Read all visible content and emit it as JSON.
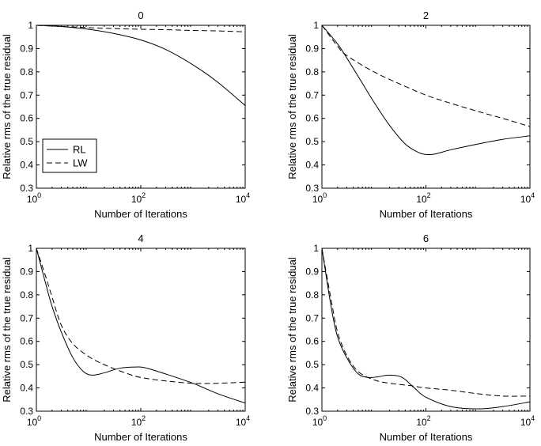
{
  "chart_data": [
    {
      "type": "line",
      "title": "0",
      "xlabel": "Number of Iterations",
      "ylabel": "Relative rms of the true residual",
      "xscale": "log",
      "xlim": [
        1,
        10000
      ],
      "ylim": [
        0.3,
        1
      ],
      "grid": false,
      "xticks": [
        {
          "value": 1,
          "base": "10",
          "exp": "0"
        },
        {
          "value": 100,
          "base": "10",
          "exp": "2"
        },
        {
          "value": 10000,
          "base": "10",
          "exp": "4"
        }
      ],
      "yticks": [
        "0.3",
        "0.4",
        "0.5",
        "0.6",
        "0.7",
        "0.8",
        "0.9",
        "1"
      ],
      "legend": {
        "position": "bottom-left",
        "entries": [
          "RL",
          "LW"
        ]
      },
      "series": [
        {
          "name": "RL",
          "style": "solid",
          "x": [
            1,
            3,
            10,
            30,
            100,
            300,
            1000,
            3000,
            10000
          ],
          "y": [
            1.0,
            0.995,
            0.983,
            0.965,
            0.937,
            0.896,
            0.83,
            0.755,
            0.655
          ]
        },
        {
          "name": "LW",
          "style": "dashed",
          "x": [
            1,
            3,
            10,
            30,
            100,
            300,
            1000,
            3000,
            10000
          ],
          "y": [
            1.0,
            0.995,
            0.99,
            0.986,
            0.983,
            0.981,
            0.978,
            0.976,
            0.972
          ]
        }
      ]
    },
    {
      "type": "line",
      "title": "2",
      "xlabel": "Number of Iterations",
      "ylabel": "Relative rms of the true residual",
      "xscale": "log",
      "xlim": [
        1,
        10000
      ],
      "ylim": [
        0.3,
        1
      ],
      "grid": false,
      "xticks": [
        {
          "value": 1,
          "base": "10",
          "exp": "0"
        },
        {
          "value": 100,
          "base": "10",
          "exp": "2"
        },
        {
          "value": 10000,
          "base": "10",
          "exp": "4"
        }
      ],
      "yticks": [
        "0.3",
        "0.4",
        "0.5",
        "0.6",
        "0.7",
        "0.8",
        "0.9",
        "1"
      ],
      "series": [
        {
          "name": "RL",
          "style": "solid",
          "x": [
            1,
            2,
            3,
            5,
            10,
            20,
            40,
            70,
            100,
            150,
            300,
            1000,
            3000,
            10000
          ],
          "y": [
            1.0,
            0.92,
            0.86,
            0.78,
            0.67,
            0.57,
            0.49,
            0.455,
            0.445,
            0.447,
            0.465,
            0.49,
            0.51,
            0.525
          ]
        },
        {
          "name": "LW",
          "style": "dashed",
          "x": [
            1,
            2,
            3,
            10,
            30,
            100,
            300,
            1000,
            3000,
            10000
          ],
          "y": [
            1.0,
            0.91,
            0.87,
            0.8,
            0.75,
            0.7,
            0.665,
            0.63,
            0.6,
            0.565
          ]
        }
      ]
    },
    {
      "type": "line",
      "title": "4",
      "xlabel": "Number of Iterations",
      "ylabel": "Relative rms of the true residual",
      "xscale": "log",
      "xlim": [
        1,
        10000
      ],
      "ylim": [
        0.3,
        1
      ],
      "grid": false,
      "xticks": [
        {
          "value": 1,
          "base": "10",
          "exp": "0"
        },
        {
          "value": 100,
          "base": "10",
          "exp": "2"
        },
        {
          "value": 10000,
          "base": "10",
          "exp": "4"
        }
      ],
      "yticks": [
        "0.3",
        "0.4",
        "0.5",
        "0.6",
        "0.7",
        "0.8",
        "0.9",
        "1"
      ],
      "series": [
        {
          "name": "RL",
          "style": "solid",
          "x": [
            1,
            1.5,
            2,
            3,
            5,
            8,
            12,
            20,
            40,
            80,
            120,
            300,
            1000,
            3000,
            10000
          ],
          "y": [
            1.0,
            0.85,
            0.75,
            0.64,
            0.53,
            0.47,
            0.455,
            0.465,
            0.485,
            0.49,
            0.487,
            0.46,
            0.42,
            0.375,
            0.335
          ]
        },
        {
          "name": "LW",
          "style": "dashed",
          "x": [
            1,
            1.5,
            2,
            3,
            5,
            10,
            20,
            50,
            100,
            300,
            1000,
            3000,
            10000
          ],
          "y": [
            1.0,
            0.88,
            0.79,
            0.67,
            0.59,
            0.535,
            0.5,
            0.465,
            0.445,
            0.43,
            0.42,
            0.42,
            0.425
          ]
        }
      ]
    },
    {
      "type": "line",
      "title": "6",
      "xlabel": "Number of Iterations",
      "ylabel": "Relative rms of the true residual",
      "xscale": "log",
      "xlim": [
        1,
        10000
      ],
      "ylim": [
        0.3,
        1
      ],
      "grid": false,
      "xticks": [
        {
          "value": 1,
          "base": "10",
          "exp": "0"
        },
        {
          "value": 100,
          "base": "10",
          "exp": "2"
        },
        {
          "value": 10000,
          "base": "10",
          "exp": "4"
        }
      ],
      "yticks": [
        "0.3",
        "0.4",
        "0.5",
        "0.6",
        "0.7",
        "0.8",
        "0.9",
        "1"
      ],
      "series": [
        {
          "name": "RL",
          "style": "solid",
          "x": [
            1,
            1.5,
            2,
            3,
            5,
            8,
            12,
            20,
            35,
            60,
            100,
            300,
            1000,
            3000,
            10000
          ],
          "y": [
            1.0,
            0.75,
            0.62,
            0.53,
            0.46,
            0.445,
            0.448,
            0.455,
            0.445,
            0.4,
            0.36,
            0.32,
            0.31,
            0.32,
            0.34
          ]
        },
        {
          "name": "LW",
          "style": "dashed",
          "x": [
            1,
            1.5,
            2,
            3,
            5,
            10,
            20,
            50,
            100,
            300,
            1000,
            3000,
            10000
          ],
          "y": [
            1.0,
            0.78,
            0.64,
            0.54,
            0.47,
            0.435,
            0.42,
            0.41,
            0.4,
            0.39,
            0.375,
            0.365,
            0.365
          ]
        }
      ]
    }
  ]
}
